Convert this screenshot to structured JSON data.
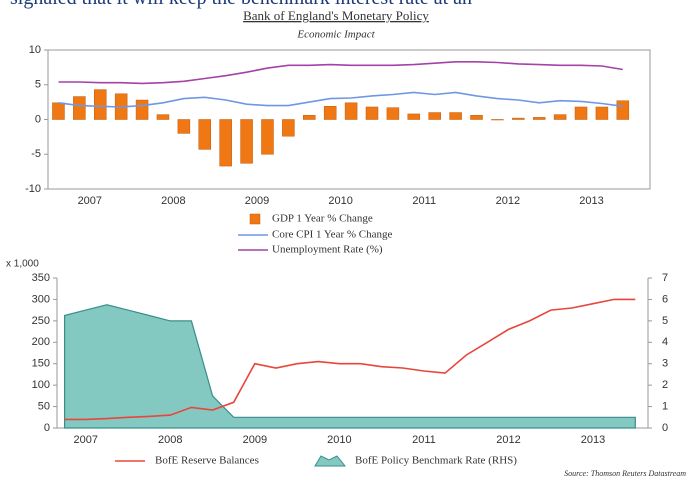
{
  "caption": "signaled that it will keep the benchmark interest rate at an",
  "source": "Source: Thomson Reuters Datastream",
  "chart_data": [
    {
      "type": "combo",
      "title": "Bank of England's Monetary Policy",
      "subtitle": "Economic Impact",
      "x": [
        2007.125,
        2007.375,
        2007.625,
        2007.875,
        2008.125,
        2008.375,
        2008.625,
        2008.875,
        2009.125,
        2009.375,
        2009.625,
        2009.875,
        2010.125,
        2010.375,
        2010.625,
        2010.875,
        2011.125,
        2011.375,
        2011.625,
        2011.875,
        2012.125,
        2012.375,
        2012.625,
        2012.875,
        2013.125,
        2013.375,
        2013.625,
        2013.875
      ],
      "xlim": [
        2007,
        2014.2
      ],
      "xticks": [
        {
          "value": 2007.5,
          "label": "2007"
        },
        {
          "value": 2008.5,
          "label": "2008"
        },
        {
          "value": 2009.5,
          "label": "2009"
        },
        {
          "value": 2010.5,
          "label": "2010"
        },
        {
          "value": 2011.5,
          "label": "2011"
        },
        {
          "value": 2012.5,
          "label": "2012"
        },
        {
          "value": 2013.5,
          "label": "2013"
        }
      ],
      "ylim": [
        -10,
        10
      ],
      "yticks": [
        -10,
        -5,
        0,
        5,
        10
      ],
      "series": [
        {
          "name": "GDP 1 Year % Change",
          "type": "bar",
          "color": "#f07814",
          "values": [
            2.4,
            3.3,
            4.3,
            3.7,
            2.8,
            0.7,
            -2.0,
            -4.3,
            -6.7,
            -6.3,
            -5.0,
            -2.4,
            0.6,
            1.9,
            2.4,
            1.8,
            1.7,
            0.8,
            1.0,
            1.0,
            0.6,
            0.0,
            0.2,
            0.3,
            0.7,
            1.8,
            1.8,
            2.7
          ]
        },
        {
          "name": "Core CPI 1 Year % Change",
          "type": "line",
          "color": "#6f97e6",
          "values": [
            2.4,
            2.0,
            1.9,
            1.8,
            2.0,
            2.4,
            3.0,
            3.2,
            2.8,
            2.2,
            2.0,
            2.0,
            2.5,
            3.0,
            3.1,
            3.4,
            3.6,
            3.9,
            3.6,
            3.9,
            3.4,
            3.0,
            2.8,
            2.4,
            2.7,
            2.6,
            2.3,
            1.9
          ]
        },
        {
          "name": "Unemployment Rate (%)",
          "type": "line",
          "color": "#a442a8",
          "values": [
            5.4,
            5.4,
            5.3,
            5.3,
            5.2,
            5.3,
            5.5,
            5.9,
            6.3,
            6.8,
            7.4,
            7.8,
            7.8,
            7.9,
            7.8,
            7.8,
            7.8,
            7.9,
            8.1,
            8.3,
            8.3,
            8.2,
            8.0,
            7.9,
            7.8,
            7.8,
            7.7,
            7.2
          ]
        }
      ]
    },
    {
      "type": "combo",
      "y_unit": "x 1,000",
      "x": [
        2007.25,
        2007.5,
        2007.75,
        2008.0,
        2008.25,
        2008.5,
        2008.75,
        2009.0,
        2009.25,
        2009.5,
        2009.75,
        2010.0,
        2010.25,
        2010.5,
        2010.75,
        2011.0,
        2011.25,
        2011.5,
        2011.75,
        2012.0,
        2012.25,
        2012.5,
        2012.75,
        2013.0,
        2013.25,
        2013.5,
        2013.75,
        2014.0
      ],
      "xlim": [
        2007.16,
        2014.15
      ],
      "xticks": [
        {
          "value": 2007.5,
          "label": "2007"
        },
        {
          "value": 2008.5,
          "label": "2008"
        },
        {
          "value": 2009.5,
          "label": "2009"
        },
        {
          "value": 2010.5,
          "label": "2010"
        },
        {
          "value": 2011.5,
          "label": "2011"
        },
        {
          "value": 2012.5,
          "label": "2012"
        },
        {
          "value": 2013.5,
          "label": "2013"
        }
      ],
      "ylim": [
        0,
        350
      ],
      "yticks": [
        0,
        50,
        100,
        150,
        200,
        250,
        300,
        350
      ],
      "y2lim": [
        0,
        7
      ],
      "y2ticks": [
        0,
        1,
        2,
        3,
        4,
        5,
        6,
        7
      ],
      "series": [
        {
          "name": "BofE Reserve Balances",
          "type": "line",
          "color": "#e8463c",
          "values": [
            20,
            20,
            22,
            25,
            27,
            30,
            48,
            42,
            60,
            150,
            140,
            150,
            155,
            150,
            150,
            143,
            140,
            133,
            128,
            170,
            200,
            230,
            250,
            275,
            280,
            290,
            300,
            300
          ]
        },
        {
          "name": "BofE Policy Benchmark Rate (RHS)",
          "type": "area",
          "axis": "y2",
          "color": "#84c8c2",
          "values": [
            5.25,
            5.5,
            5.75,
            5.5,
            5.25,
            5.0,
            5.0,
            1.5,
            0.5,
            0.5,
            0.5,
            0.5,
            0.5,
            0.5,
            0.5,
            0.5,
            0.5,
            0.5,
            0.5,
            0.5,
            0.5,
            0.5,
            0.5,
            0.5,
            0.5,
            0.5,
            0.5,
            0.5
          ]
        }
      ]
    }
  ]
}
